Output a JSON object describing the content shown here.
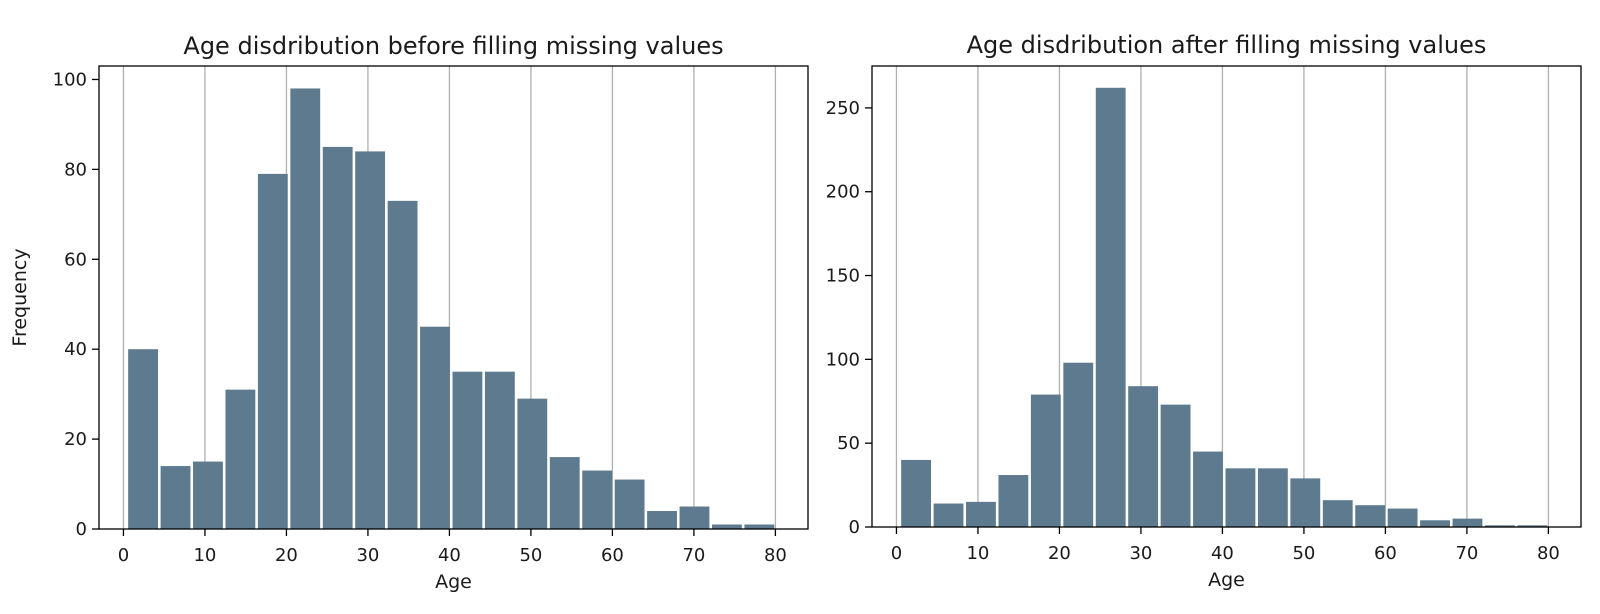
{
  "chart_data": [
    {
      "type": "bar",
      "title": "Age disdribution before filling missing values",
      "xlabel": "Age",
      "ylabel": "Frequency",
      "xlim": [
        -3,
        84
      ],
      "ylim": [
        0,
        103
      ],
      "grid": "vertical",
      "bar_color": "#5d7a8f",
      "bin_edges": [
        0.42,
        4.4,
        8.38,
        12.36,
        16.34,
        20.32,
        24.3,
        28.28,
        32.26,
        36.24,
        40.22,
        44.2,
        48.18,
        52.16,
        56.14,
        60.12,
        64.1,
        68.08,
        72.06,
        76.04,
        80.02
      ],
      "values": [
        40,
        14,
        15,
        31,
        79,
        98,
        85,
        84,
        73,
        45,
        35,
        35,
        29,
        16,
        13,
        11,
        4,
        5,
        1,
        1
      ],
      "xticks": [
        0,
        10,
        20,
        30,
        40,
        50,
        60,
        70,
        80
      ],
      "yticks": [
        0,
        20,
        40,
        60,
        80,
        100
      ]
    },
    {
      "type": "bar",
      "title": "Age disdribution after filling missing values",
      "xlabel": "Age",
      "ylabel": "",
      "xlim": [
        -3,
        84
      ],
      "ylim": [
        0,
        275
      ],
      "grid": "vertical",
      "bar_color": "#5d7a8f",
      "bin_edges": [
        0.42,
        4.4,
        8.38,
        12.36,
        16.34,
        20.32,
        24.3,
        28.28,
        32.26,
        36.24,
        40.22,
        44.2,
        48.18,
        52.16,
        56.14,
        60.12,
        64.1,
        68.08,
        72.06,
        76.04,
        80.02
      ],
      "values": [
        40,
        14,
        15,
        31,
        79,
        98,
        262,
        84,
        73,
        45,
        35,
        35,
        29,
        16,
        13,
        11,
        4,
        5,
        1,
        1
      ],
      "xticks": [
        0,
        10,
        20,
        30,
        40,
        50,
        60,
        70,
        80
      ],
      "yticks": [
        0,
        50,
        100,
        150,
        200,
        250
      ]
    }
  ]
}
